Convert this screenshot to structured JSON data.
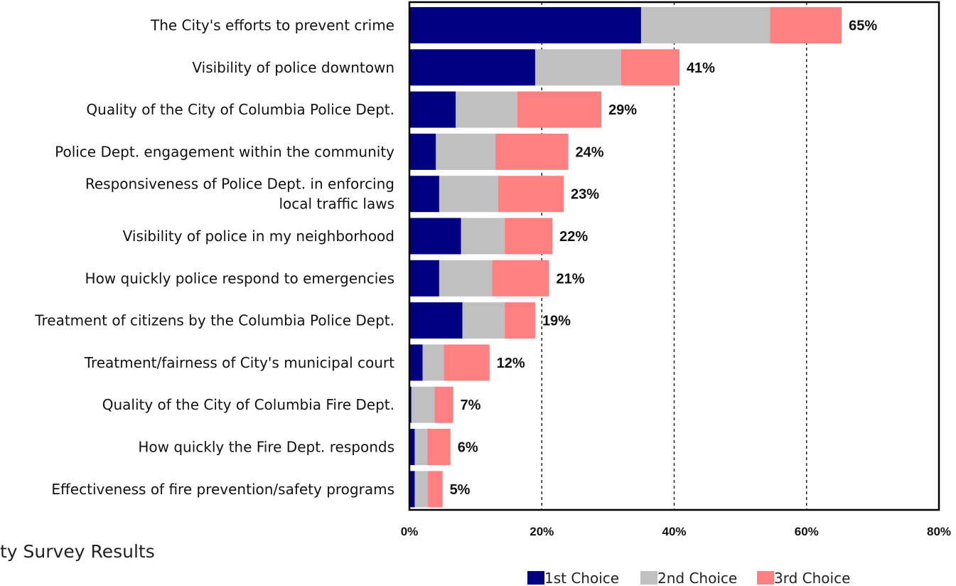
{
  "caption": "ty Survey Results",
  "chart_data": {
    "type": "bar",
    "orientation": "horizontal",
    "stacked": true,
    "title": "",
    "xlabel": "",
    "ylabel": "",
    "xlim": [
      0,
      80
    ],
    "ticks": [
      "0%",
      "20%",
      "40%",
      "60%",
      "80%"
    ],
    "tick_values": [
      0,
      20,
      40,
      60,
      80
    ],
    "grid": "dashed vertical at 20%, 40%, 60%",
    "legend_position": "bottom",
    "categories": [
      [
        "The City's efforts to prevent crime"
      ],
      [
        "Visibility of police downtown"
      ],
      [
        "Quality of the City of Columbia Police Dept."
      ],
      [
        "Police Dept. engagement within the community"
      ],
      [
        "Responsiveness of Police Dept. in enforcing",
        "local traffic laws"
      ],
      [
        "Visibility of police in my neighborhood"
      ],
      [
        "How quickly police respond to emergencies"
      ],
      [
        "Treatment of citizens by the Columbia Police Dept."
      ],
      [
        "Treatment/fairness of City's municipal court"
      ],
      [
        "Quality of the City of Columbia Fire Dept."
      ],
      [
        "How quickly the Fire Dept. responds"
      ],
      [
        "Effectiveness of fire prevention/safety programs"
      ]
    ],
    "series": [
      {
        "name": "1st Choice",
        "color": "#000080",
        "values": [
          35,
          19,
          7,
          4,
          4.5,
          7.8,
          4.5,
          8,
          2,
          0.3,
          0.8,
          0.8
        ]
      },
      {
        "name": "2nd Choice",
        "color": "#c0c0c0",
        "values": [
          19.5,
          13,
          9.3,
          9,
          8.9,
          6.6,
          8,
          6.4,
          3.2,
          3.5,
          1.9,
          2
        ]
      },
      {
        "name": "3rd Choice",
        "color": "#ff8080",
        "values": [
          10.8,
          8.8,
          12.7,
          11,
          9.9,
          7.2,
          8.6,
          4.6,
          6.9,
          2.8,
          3.5,
          2.2
        ]
      }
    ],
    "totals": [
      "65%",
      "41%",
      "29%",
      "24%",
      "23%",
      "22%",
      "21%",
      "19%",
      "12%",
      "7%",
      "6%",
      "5%"
    ]
  }
}
